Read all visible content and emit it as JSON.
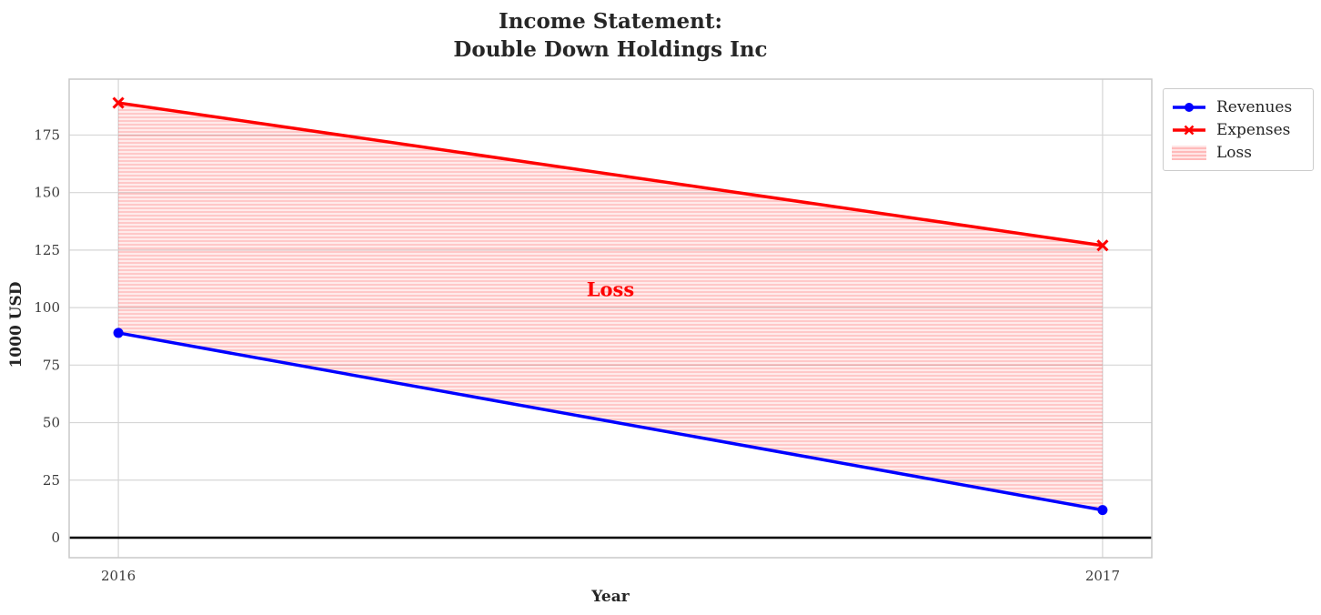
{
  "figure": {
    "title_line1": "Income Statement:",
    "title_line2": "Double Down Holdings Inc"
  },
  "chart_data": {
    "type": "line",
    "title": "Income Statement: Double Down Holdings Inc",
    "xlabel": "Year",
    "ylabel": "1000 USD",
    "x": [
      2016,
      2017
    ],
    "series": [
      {
        "name": "Revenues",
        "values": [
          89,
          12
        ],
        "color": "#0000ff",
        "marker": "circle"
      },
      {
        "name": "Expenses",
        "values": [
          189,
          127
        ],
        "color": "#ff0000",
        "marker": "x"
      }
    ],
    "fill_between": {
      "label": "Loss",
      "upper_series": "Expenses",
      "lower_series": "Revenues",
      "facecolor": "rgba(255,0,0,0.08)",
      "hatch": "horizontal-lines",
      "hatch_color": "rgba(255,0,0,0.18)",
      "annotation": {
        "text": "Loss",
        "x": 2016.5,
        "y": 105,
        "color": "#ff0000"
      }
    },
    "xlim": [
      2015.95,
      2017.05
    ],
    "ylim": [
      -8.7,
      199.3
    ],
    "xticks": [
      "2016",
      "2017"
    ],
    "xtick_values": [
      2016,
      2017
    ],
    "yticks": [
      0,
      25,
      50,
      75,
      100,
      125,
      150,
      175
    ],
    "zero_line": 0,
    "grid": true,
    "legend": {
      "position": "outside-top-right",
      "entries": [
        "Revenues",
        "Expenses",
        "Loss"
      ]
    }
  }
}
